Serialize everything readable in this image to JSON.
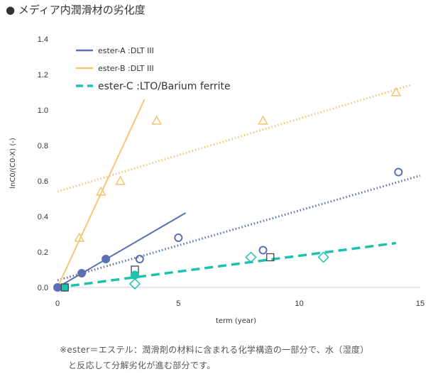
{
  "title": "● メディア内潤滑材の劣化度",
  "note": [
    "※ester＝エステル：潤滑剤の材料に含まれる化学構造の一部分で、水（湿度）",
    "と反応して分解劣化が進む部分です。"
  ],
  "chart_data": {
    "type": "scatter",
    "xlabel": "term (year)",
    "ylabel": "lnC0/(C0-X) (-)",
    "xlim": [
      0,
      15
    ],
    "ylim": [
      0,
      1.4
    ],
    "xticks": [
      0,
      5,
      10,
      15
    ],
    "yticks": [
      "0.0",
      "0.2",
      "0.4",
      "0.6",
      "0.8",
      "1.0",
      "1.2",
      "1.4"
    ],
    "grid": false,
    "legend_position": "top-left",
    "series": [
      {
        "name": "ester-A :DLT III",
        "color": "#5b6fb5",
        "filled_points": [
          [
            0,
            0
          ],
          [
            1.0,
            0.08
          ],
          [
            2.0,
            0.16
          ]
        ],
        "open_circle_points": [
          [
            3.4,
            0.16
          ],
          [
            5.0,
            0.28
          ],
          [
            8.5,
            0.21
          ],
          [
            14.1,
            0.65
          ]
        ],
        "open_square_points": [
          [
            3.2,
            0.1
          ],
          [
            8.8,
            0.17
          ]
        ],
        "fit_solid": [
          [
            0,
            0
          ],
          [
            5.3,
            0.42
          ]
        ],
        "fit_dotted": [
          [
            0,
            0.04
          ],
          [
            15,
            0.63
          ]
        ]
      },
      {
        "name": "ester-B :DLT III",
        "color": "#f0c878",
        "open_triangle_points": [
          [
            0.9,
            0.28
          ],
          [
            1.8,
            0.54
          ],
          [
            2.6,
            0.6
          ],
          [
            4.1,
            0.94
          ],
          [
            8.5,
            0.94
          ],
          [
            14.0,
            1.1
          ]
        ],
        "fit_solid": [
          [
            0,
            0
          ],
          [
            3.6,
            1.06
          ]
        ],
        "fit_dotted": [
          [
            0,
            0.54
          ],
          [
            14.6,
            1.14
          ]
        ]
      },
      {
        "name": "ester-C :LTO/Barium ferrite",
        "color": "#1ec1ad",
        "filled_points": [
          [
            0.3,
            0
          ],
          [
            3.2,
            0.07
          ]
        ],
        "filled_square_points": [
          [
            0.3,
            0
          ]
        ],
        "open_diamond_points": [
          [
            3.2,
            0.02
          ],
          [
            8.0,
            0.17
          ],
          [
            11.0,
            0.17
          ]
        ],
        "fit_dashed": [
          [
            0,
            0
          ],
          [
            14,
            0.25
          ]
        ]
      }
    ]
  }
}
